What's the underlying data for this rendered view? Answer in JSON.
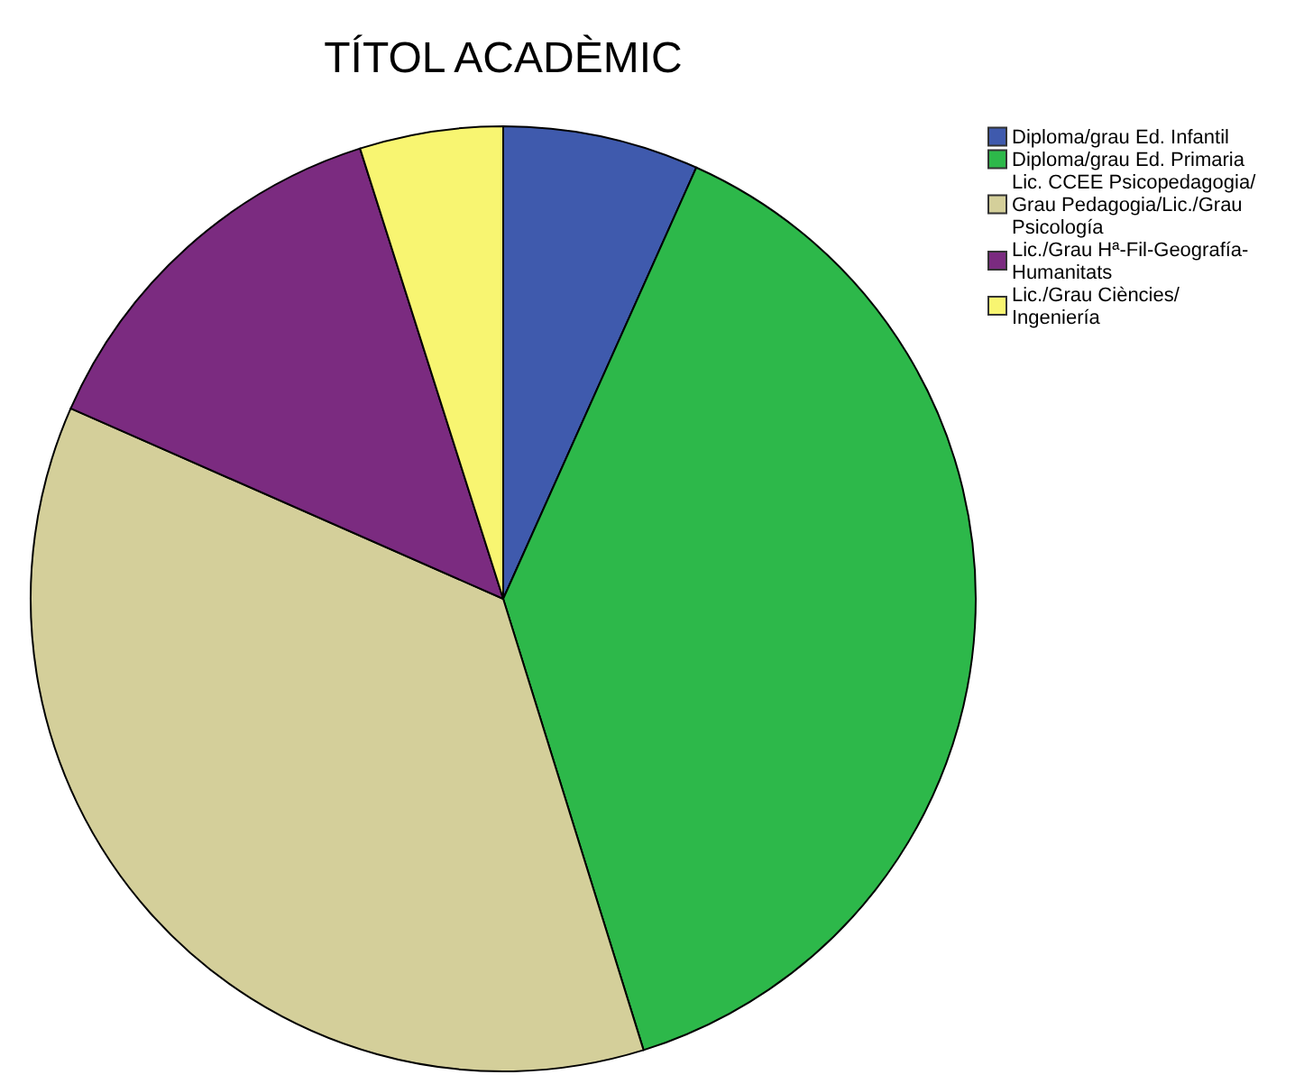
{
  "chart_data": {
    "type": "pie",
    "title": "TÍTOL ACADÈMIC",
    "categories": [
      "Diploma/grau Ed. Infantil",
      "Diploma/grau Ed. Primaria",
      "Lic. CCEE Psicopedagogia/Grau Pedagogia/Lic./Grau Psicología",
      "Lic./Grau Hª-Fil-Geografía-Humanitats",
      "Lic./Grau Ciències/Ingeniería"
    ],
    "values": [
      6.7,
      38.5,
      36.4,
      13.5,
      4.9
    ],
    "colors": [
      "#3f5aad",
      "#2db84a",
      "#d4cf9a",
      "#7b2b80",
      "#f8f571"
    ],
    "legend": "right"
  }
}
